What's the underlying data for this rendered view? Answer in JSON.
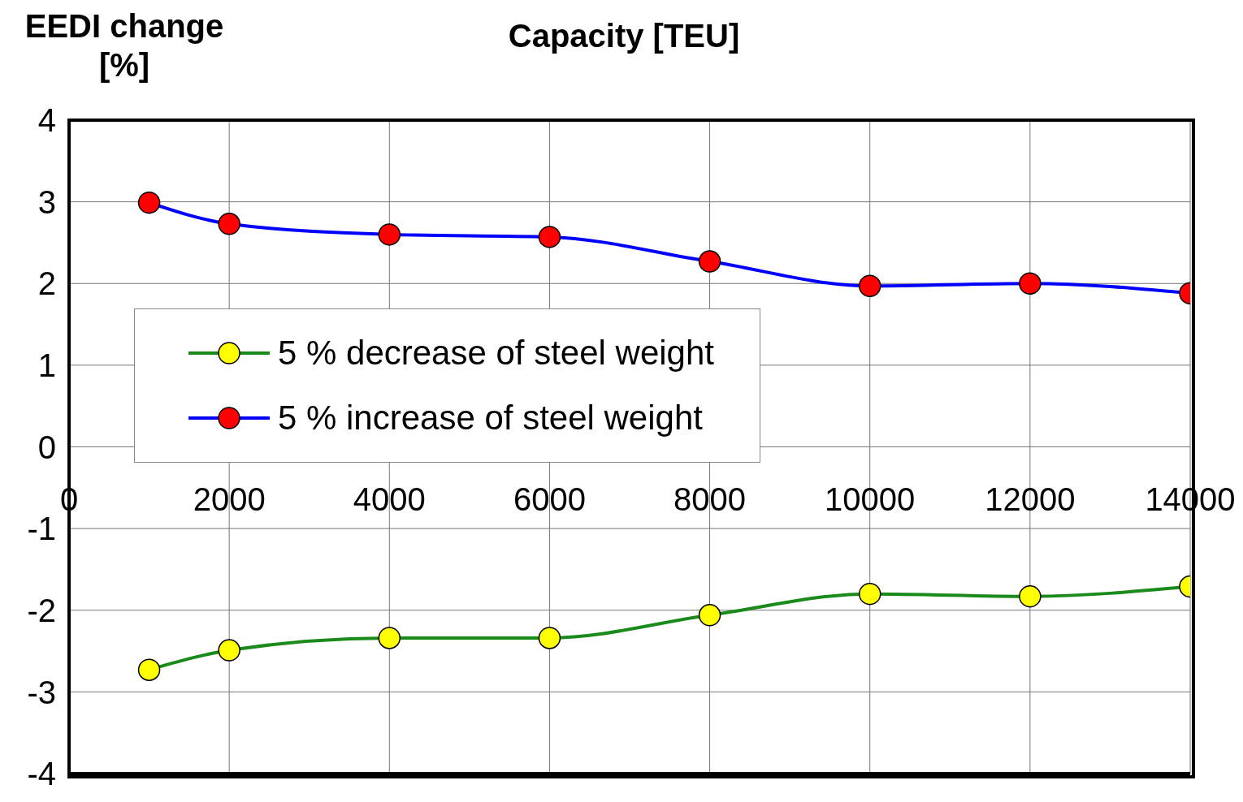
{
  "chart_data": {
    "type": "line",
    "xlabel": "Capacity [TEU]",
    "ylabel": "EEDI change [%]",
    "x": [
      1000,
      2000,
      4000,
      6000,
      8000,
      10000,
      12000,
      14000
    ],
    "series": [
      {
        "name": "5 % decrease of steel weight",
        "color": "#1a8a1a",
        "colors": [
          "#ffff00",
          "#ffff00",
          "#ffff00",
          "#ffff00",
          "#ffff00",
          "#ffff00",
          "#ffff00",
          "#ffff00"
        ],
        "values": [
          -2.73,
          -2.49,
          -2.34,
          -2.34,
          -2.06,
          -1.8,
          -1.83,
          -1.71
        ]
      },
      {
        "name": "5 % increase of steel weight",
        "color": "#0000ff",
        "colors": [
          "#ff0000",
          "#ff0000",
          "#ff0000",
          "#ff0000",
          "#ff0000",
          "#ff0000",
          "#ff0000",
          "#ff0000"
        ],
        "values": [
          2.99,
          2.73,
          2.6,
          2.57,
          2.27,
          1.97,
          2.0,
          1.88
        ]
      }
    ],
    "xlim": [
      0,
      14000
    ],
    "xticks": [
      0,
      2000,
      4000,
      6000,
      8000,
      10000,
      12000,
      14000
    ],
    "ylim": [
      -4,
      4
    ],
    "yticks": [
      -4,
      -3,
      -2,
      -1,
      0,
      1,
      2,
      3,
      4
    ],
    "grid": true,
    "legend": "left",
    "marker": "circle",
    "line_style": "solid"
  }
}
